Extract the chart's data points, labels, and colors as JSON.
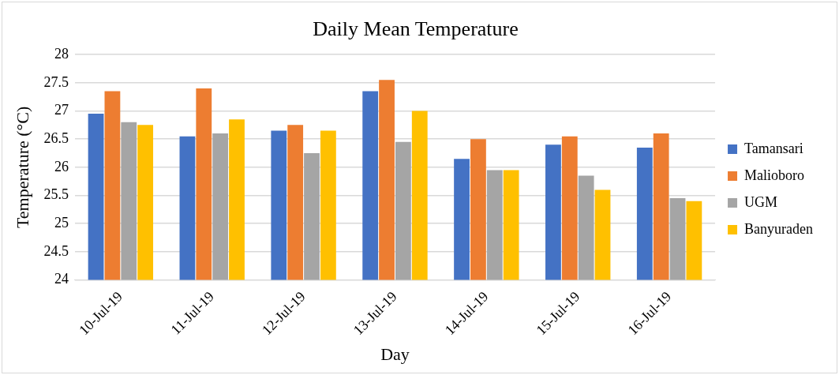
{
  "chart_data": {
    "type": "bar",
    "title": "Daily Mean Temperature",
    "xlabel": "Day",
    "ylabel": "Temperature (°C)",
    "categories": [
      "10-Jul-19",
      "11-Jul-19",
      "12-Jul-19",
      "13-Jul-19",
      "14-Jul-19",
      "15-Jul-19",
      "16-Jul-19"
    ],
    "series": [
      {
        "name": "Tamansari",
        "color": "#4472c4",
        "values": [
          26.95,
          26.55,
          26.65,
          27.35,
          26.15,
          26.4,
          26.35
        ]
      },
      {
        "name": "Malioboro",
        "color": "#ed7d31",
        "values": [
          27.35,
          27.4,
          26.75,
          27.55,
          26.5,
          26.55,
          26.6
        ]
      },
      {
        "name": "UGM",
        "color": "#a5a5a5",
        "values": [
          26.8,
          26.6,
          26.25,
          26.45,
          25.95,
          25.85,
          25.45
        ]
      },
      {
        "name": "Banyuraden",
        "color": "#ffc000",
        "values": [
          26.75,
          26.85,
          26.65,
          27,
          25.95,
          25.6,
          25.4
        ]
      }
    ],
    "ylim": [
      24,
      28
    ],
    "yticks": [
      24,
      24.5,
      25,
      25.5,
      26,
      26.5,
      27,
      27.5,
      28
    ],
    "grid": "y",
    "legend": "right"
  }
}
